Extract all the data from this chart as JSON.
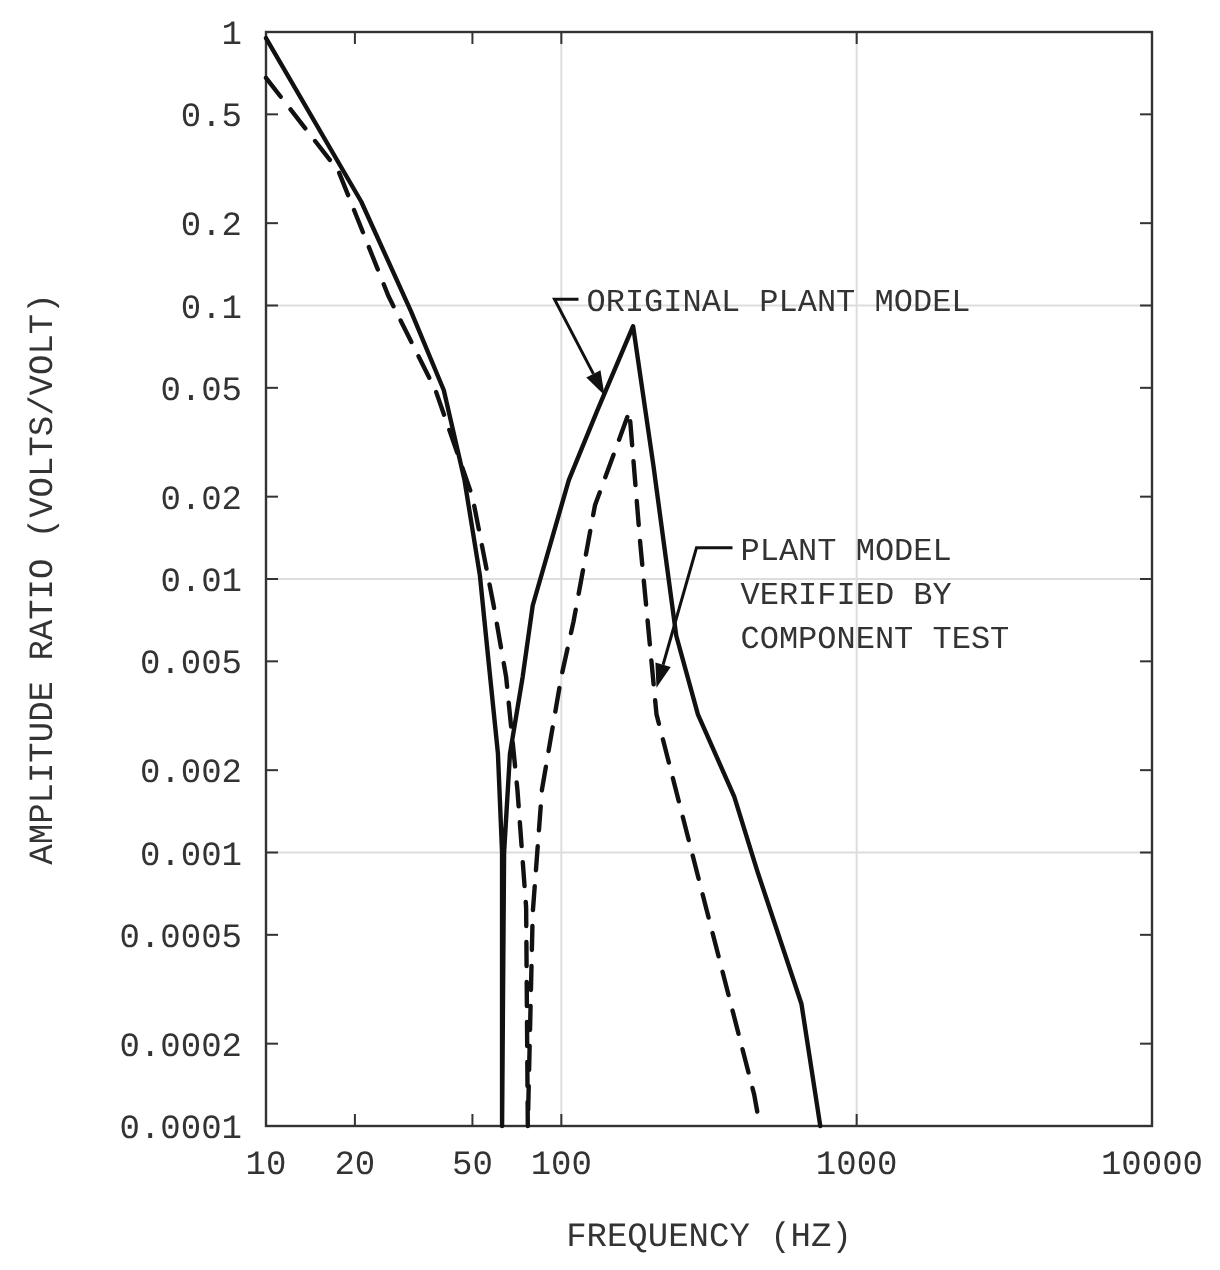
{
  "chart_data": {
    "type": "line",
    "xlabel": "FREQUENCY (HZ)",
    "ylabel": "AMPLITUDE RATIO (VOLTS/VOLT)",
    "log": "xy",
    "grid": true,
    "xlim": [
      10,
      10000
    ],
    "ylim": [
      0.0001,
      1
    ],
    "xticks": [
      10,
      20,
      50,
      100,
      1000,
      10000
    ],
    "yticks": [
      1,
      0.5,
      0.2,
      0.1,
      0.05,
      0.02,
      0.01,
      0.005,
      0.002,
      0.001,
      0.0005,
      0.0002,
      0.0001
    ],
    "series": [
      {
        "color": "#111111",
        "line_style": "solid",
        "x": [
          10,
          21,
          31,
          40,
          47,
          53,
          56,
          61,
          63,
          63,
          64,
          67,
          74,
          80,
          106,
          132,
          175,
          205,
          245,
          290,
          385,
          460,
          650,
          753
        ],
        "values": [
          0.95,
          0.24,
          0.095,
          0.049,
          0.023,
          0.0103,
          0.0057,
          0.0023,
          0.001,
          0.0001,
          0.001,
          0.0023,
          0.0044,
          0.008,
          0.023,
          0.041,
          0.084,
          0.026,
          0.0062,
          0.0032,
          0.0016,
          0.00086,
          0.00028,
          0.0001
        ]
      },
      {
        "color": "#111111",
        "line_style": "dashed",
        "x": [
          10,
          17.6,
          26,
          37.5,
          50,
          59,
          65,
          71,
          76,
          77,
          80,
          86,
          100,
          110,
          130,
          170,
          185,
          210,
          310,
          450,
          470
        ],
        "values": [
          0.68,
          0.31,
          0.108,
          0.049,
          0.02,
          0.008,
          0.0044,
          0.0017,
          0.00063,
          0.0001,
          0.0006,
          0.0017,
          0.0044,
          0.007,
          0.0186,
          0.041,
          0.0135,
          0.0032,
          0.00062,
          0.00013,
          0.0001
        ]
      }
    ],
    "annotations": [
      {
        "text": "ORIGINAL PLANT MODEL",
        "x": 140,
        "y": 0.047
      },
      {
        "text": "PLANT MODEL\nVERIFIED BY\nCOMPONENT TEST",
        "x": 210,
        "y": 0.004
      }
    ]
  }
}
